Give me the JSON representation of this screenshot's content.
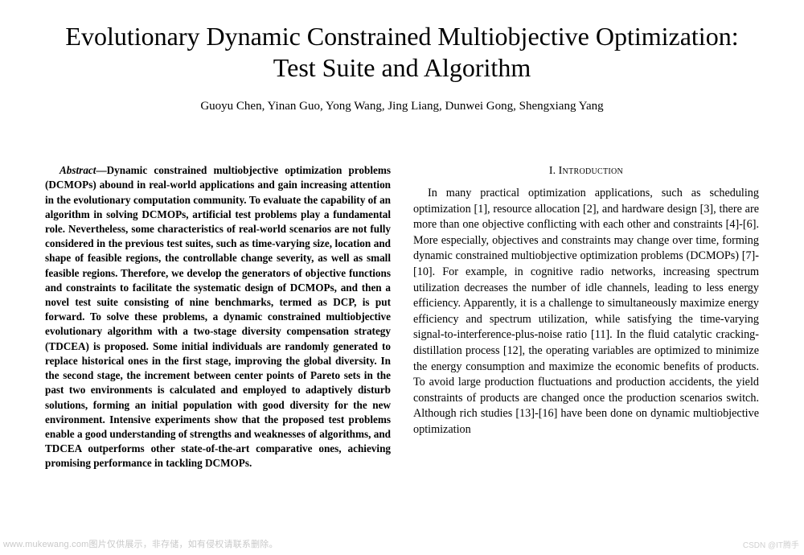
{
  "title": "Evolutionary Dynamic Constrained Multiobjective Optimization: Test Suite and Algorithm",
  "authors": "Guoyu Chen, Yinan Guo, Yong Wang, Jing Liang, Dunwei Gong, Shengxiang Yang",
  "abstract": {
    "lead": "Abstract",
    "text": "—Dynamic constrained multiobjective optimization problems (DCMOPs) abound in real-world applications and gain increasing attention in the evolutionary computation community. To evaluate the capability of an algorithm in solving DCMOPs, artificial test problems play a fundamental role. Nevertheless, some characteristics of real-world scenarios are not fully considered in the previous test suites, such as time-varying size, location and shape of feasible regions, the controllable change severity, as well as small feasible regions. Therefore, we develop the generators of objective functions and constraints to facilitate the systematic design of DCMOPs, and then a novel test suite consisting of nine benchmarks, termed as DCP, is put forward. To solve these problems, a dynamic constrained multiobjective evolutionary algorithm with a two-stage diversity compensation strategy (TDCEA) is proposed. Some initial individuals are randomly generated to replace historical ones in the first stage, improving the global diversity. In the second stage, the increment between center points of Pareto sets in the past two environments is calculated and employed to adaptively disturb solutions, forming an initial population with good diversity for the new environment. Intensive experiments show that the proposed test problems enable a good understanding of strengths and weaknesses of algorithms, and TDCEA outperforms other state-of-the-art comparative ones, achieving promising performance in tackling DCMOPs."
  },
  "section": {
    "num": "I.",
    "word": "Introduction"
  },
  "intro": "In many practical optimization applications, such as scheduling optimization [1], resource allocation [2], and hardware design [3], there are more than one objective conflicting with each other and constraints [4]-[6]. More especially, objectives and constraints may change over time, forming dynamic constrained multiobjective optimization problems (DCMOPs) [7]-[10]. For example, in cognitive radio networks, increasing spectrum utilization decreases the number of idle channels, leading to less energy efficiency. Apparently, it is a challenge to simultaneously maximize energy efficiency and spectrum utilization, while satisfying the time-varying signal-to-interference-plus-noise ratio [11]. In the fluid catalytic cracking-distillation process [12], the operating variables are optimized to minimize the energy consumption and maximize the economic benefits of products. To avoid large production fluctuations and production accidents, the yield constraints of products are changed once the production scenarios switch. Although rich studies [13]-[16] have been done on dynamic multiobjective optimization",
  "watermark": "www.mukewang.com图片仅供展示，非存储，如有侵权请联系删除。",
  "corner": "CSDN @IT腾手"
}
